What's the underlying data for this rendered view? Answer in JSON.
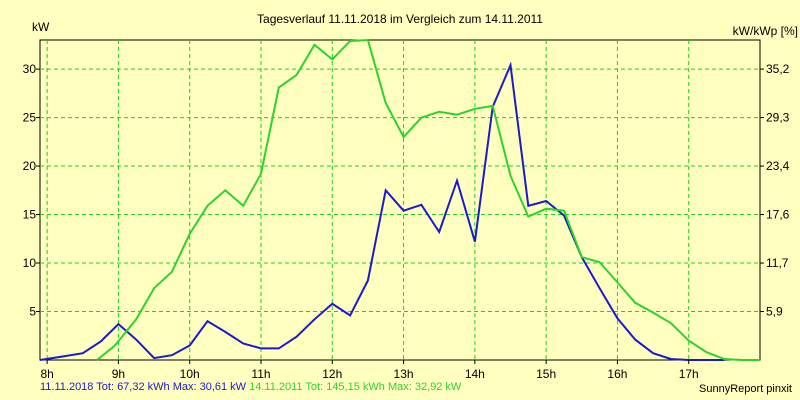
{
  "chart_data": {
    "type": "line",
    "title": "Tagesverlauf 11.11.2018 im Vergleich zum 14.11.2011",
    "ylabel_left": "kW",
    "ylabel_right": "kW/kWp [%]",
    "xlim": [
      7.9,
      18.0
    ],
    "ylim": [
      0,
      33
    ],
    "x_ticks": [
      {
        "x": 8,
        "label": "8h"
      },
      {
        "x": 9,
        "label": "9h"
      },
      {
        "x": 10,
        "label": "10h"
      },
      {
        "x": 11,
        "label": "11h"
      },
      {
        "x": 12,
        "label": "12h"
      },
      {
        "x": 13,
        "label": "13h"
      },
      {
        "x": 14,
        "label": "14h"
      },
      {
        "x": 15,
        "label": "15h"
      },
      {
        "x": 16,
        "label": "16h"
      },
      {
        "x": 17,
        "label": "17h"
      }
    ],
    "y_ticks_left": [
      5,
      10,
      15,
      20,
      25,
      30
    ],
    "y_ticks_right": [
      "5,9",
      "11,7",
      "17,6",
      "23,4",
      "29,3",
      "35,2"
    ],
    "grid": true,
    "series": [
      {
        "name": "11.11.2018",
        "color": "#1a1ad0",
        "points": [
          [
            7.9,
            0
          ],
          [
            8.25,
            0.4
          ],
          [
            8.5,
            0.7
          ],
          [
            8.75,
            1.9
          ],
          [
            9.0,
            3.7
          ],
          [
            9.25,
            2.1
          ],
          [
            9.5,
            0.2
          ],
          [
            9.75,
            0.5
          ],
          [
            10.0,
            1.5
          ],
          [
            10.25,
            4.0
          ],
          [
            10.5,
            2.9
          ],
          [
            10.75,
            1.7
          ],
          [
            11.0,
            1.2
          ],
          [
            11.25,
            1.2
          ],
          [
            11.5,
            2.4
          ],
          [
            11.75,
            4.2
          ],
          [
            12.0,
            5.8
          ],
          [
            12.25,
            4.6
          ],
          [
            12.5,
            8.2
          ],
          [
            12.75,
            17.5
          ],
          [
            13.0,
            15.4
          ],
          [
            13.25,
            16.0
          ],
          [
            13.5,
            13.2
          ],
          [
            13.75,
            18.5
          ],
          [
            14.0,
            12.2
          ],
          [
            14.25,
            26.1
          ],
          [
            14.5,
            30.4
          ],
          [
            14.75,
            15.9
          ],
          [
            15.0,
            16.4
          ],
          [
            15.25,
            14.9
          ],
          [
            15.5,
            10.6
          ],
          [
            15.75,
            7.4
          ],
          [
            16.0,
            4.3
          ],
          [
            16.25,
            2.1
          ],
          [
            16.5,
            0.7
          ],
          [
            16.75,
            0.1
          ],
          [
            17.0,
            0
          ],
          [
            17.5,
            0
          ]
        ]
      },
      {
        "name": "14.11.2011",
        "color": "#2dd32d",
        "points": [
          [
            8.7,
            0
          ],
          [
            8.95,
            1.5
          ],
          [
            9.25,
            4.2
          ],
          [
            9.5,
            7.4
          ],
          [
            9.75,
            9.1
          ],
          [
            10.0,
            13.0
          ],
          [
            10.25,
            15.9
          ],
          [
            10.5,
            17.5
          ],
          [
            10.75,
            15.9
          ],
          [
            11.0,
            19.2
          ],
          [
            11.25,
            28.1
          ],
          [
            11.5,
            29.4
          ],
          [
            11.75,
            32.5
          ],
          [
            12.0,
            31.0
          ],
          [
            12.25,
            32.9
          ],
          [
            12.5,
            33.0
          ],
          [
            12.75,
            26.5
          ],
          [
            13.0,
            23.0
          ],
          [
            13.25,
            25.0
          ],
          [
            13.5,
            25.6
          ],
          [
            13.75,
            25.3
          ],
          [
            14.0,
            25.9
          ],
          [
            14.25,
            26.2
          ],
          [
            14.5,
            19.0
          ],
          [
            14.75,
            14.8
          ],
          [
            15.0,
            15.6
          ],
          [
            15.25,
            15.4
          ],
          [
            15.5,
            10.6
          ],
          [
            15.75,
            10.1
          ],
          [
            16.0,
            8.0
          ],
          [
            16.25,
            5.9
          ],
          [
            16.5,
            4.9
          ],
          [
            16.75,
            3.8
          ],
          [
            17.0,
            2.0
          ],
          [
            17.25,
            0.8
          ],
          [
            17.5,
            0.1
          ],
          [
            17.75,
            0
          ],
          [
            18.0,
            0
          ]
        ]
      }
    ]
  },
  "footer": {
    "series1_text": "11.11.2018 Tot: 67,32 kWh Max: 30,61 kW",
    "series2_text": "14.11.2011 Tot: 145,15 kWh Max: 32,92 kW",
    "credit": "SunnyReport pinxit"
  }
}
